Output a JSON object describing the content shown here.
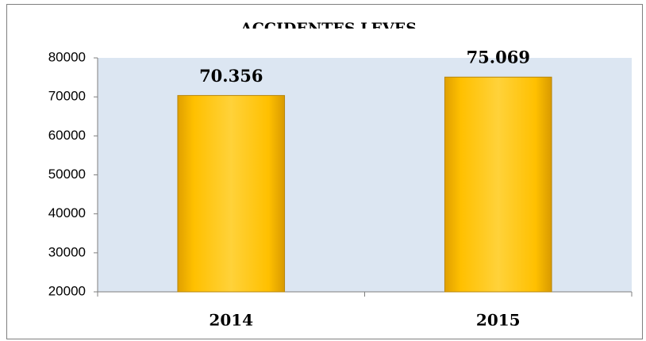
{
  "chart_data": {
    "type": "bar",
    "title": "ACCIDENTES LEVES",
    "categories": [
      "2014",
      "2015"
    ],
    "values": [
      70356,
      75069
    ],
    "value_labels": [
      "70.356",
      "75.069"
    ],
    "color": "#ffc000",
    "ylim": [
      20000,
      80000
    ],
    "yticks": [
      20000,
      30000,
      40000,
      50000,
      60000,
      70000,
      80000
    ],
    "grid": false
  }
}
